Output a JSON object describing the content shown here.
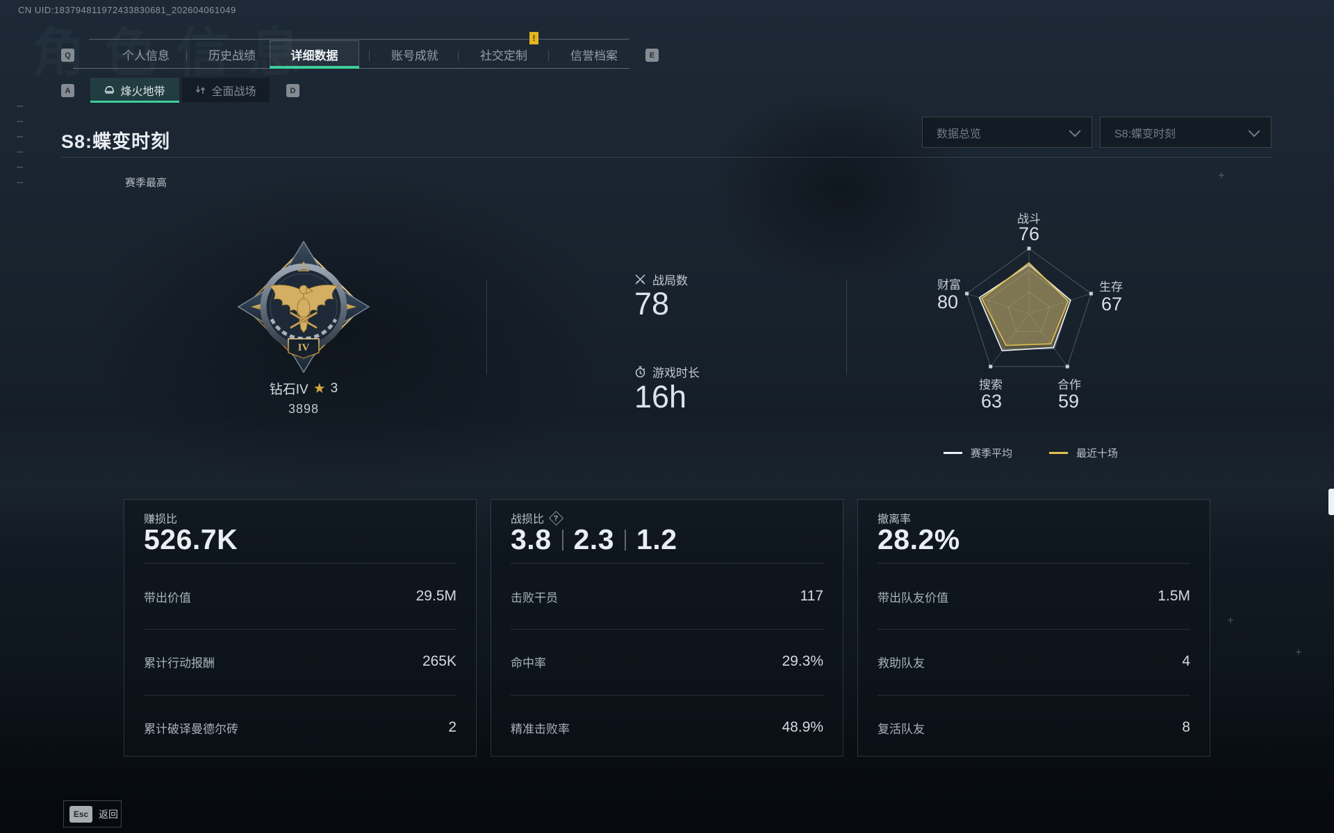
{
  "header": {
    "uid": "CN UID:183794811972433830681_202604061049",
    "watermark": "角色信息",
    "key_left": "Q",
    "key_right": "E",
    "alert_badge": "!"
  },
  "tabs": [
    {
      "label": "个人信息",
      "active": false
    },
    {
      "label": "历史战绩",
      "active": false
    },
    {
      "label": "详细数据",
      "active": true
    },
    {
      "label": "账号成就",
      "active": false
    },
    {
      "label": "社交定制",
      "active": false
    },
    {
      "label": "信誉档案",
      "active": false
    }
  ],
  "subtabs": {
    "key_left": "A",
    "key_right": "D",
    "items": [
      {
        "label": "烽火地带",
        "active": true
      },
      {
        "label": "全面战场",
        "active": false
      }
    ]
  },
  "season": {
    "title": "S8:蝶变时刻",
    "filter_overview": "数据总览",
    "filter_season": "S8:蝶变时刻",
    "season_best_label": "赛季最高"
  },
  "rank": {
    "name": "钻石IV",
    "star_icon": "★",
    "star_count": "3",
    "score": "3898",
    "tier_numeral": "IV"
  },
  "overview": {
    "matches_label": "战局数",
    "matches_value": "78",
    "playtime_label": "游戏时长",
    "playtime_value": "16h"
  },
  "chart_data": {
    "type": "radar",
    "max": 100,
    "axes": [
      {
        "label": "战斗",
        "value": 76
      },
      {
        "label": "生存",
        "value": 67
      },
      {
        "label": "合作",
        "value": 59
      },
      {
        "label": "搜索",
        "value": 63
      },
      {
        "label": "财富",
        "value": 80
      }
    ],
    "series": [
      {
        "name": "赛季平均",
        "color": "#eef2f6",
        "values": [
          75,
          67,
          64,
          70,
          80
        ]
      },
      {
        "name": "最近十场",
        "color": "#e3c14f",
        "values": [
          78,
          63,
          57,
          60,
          76
        ]
      }
    ],
    "fill_color": "rgba(186,166,106,0.40)",
    "legend_position": "bottom"
  },
  "legend": [
    {
      "label": "赛季平均",
      "color": "#eef2f6"
    },
    {
      "label": "最近十场",
      "color": "#e3c14f"
    }
  ],
  "cards": [
    {
      "label": "赚损比",
      "value": "526.7K",
      "rows": [
        {
          "label": "带出价值",
          "value": "29.5M"
        },
        {
          "label": "累计行动报酬",
          "value": "265K"
        },
        {
          "label": "累计破译曼德尔砖",
          "value": "2"
        }
      ]
    },
    {
      "label": "战损比",
      "values": [
        "3.8",
        "2.3",
        "1.2"
      ],
      "help": "?",
      "rows": [
        {
          "label": "击败干员",
          "value": "117"
        },
        {
          "label": "命中率",
          "value": "29.3%"
        },
        {
          "label": "精准击败率",
          "value": "48.9%"
        }
      ]
    },
    {
      "label": "撤离率",
      "value": "28.2%",
      "rows": [
        {
          "label": "带出队友价值",
          "value": "1.5M"
        },
        {
          "label": "救助队友",
          "value": "4"
        },
        {
          "label": "复活队友",
          "value": "8"
        }
      ]
    }
  ],
  "footer": {
    "key": "Esc",
    "label": "返回"
  },
  "colors": {
    "accent": "#3ecf9a",
    "gold": "#d8a93c",
    "alert": "#e6b41f"
  }
}
